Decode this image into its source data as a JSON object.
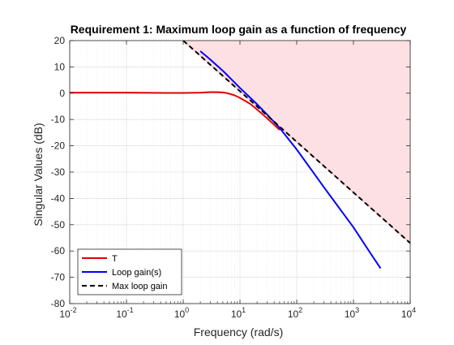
{
  "chart_data": {
    "type": "line",
    "title": "Requirement 1: Maximum loop gain as a function of frequency",
    "xlabel": "Frequency (rad/s)",
    "ylabel": "Singular Values (dB)",
    "xscale": "log",
    "xlim": [
      0.01,
      10000
    ],
    "ylim": [
      -80,
      20
    ],
    "grid": true,
    "legend_location": "bottom-left",
    "x_ticks": [
      {
        "value": 0.01,
        "base": "10",
        "exp": "-2"
      },
      {
        "value": 0.1,
        "base": "10",
        "exp": "-1"
      },
      {
        "value": 1,
        "base": "10",
        "exp": "0"
      },
      {
        "value": 10,
        "base": "10",
        "exp": "1"
      },
      {
        "value": 100,
        "base": "10",
        "exp": "2"
      },
      {
        "value": 1000,
        "base": "10",
        "exp": "3"
      },
      {
        "value": 10000,
        "base": "10",
        "exp": "4"
      }
    ],
    "y_ticks": [
      "20",
      "10",
      "0",
      "-10",
      "-20",
      "-30",
      "-40",
      "-50",
      "-60",
      "-70",
      "-80"
    ],
    "shaded_region": {
      "label": "Max loop gain",
      "fill_color": "#fde0e3",
      "edge_color": "#f4a9b1"
    },
    "series": [
      {
        "name": "T",
        "color": "#e00000",
        "style": "solid",
        "x": [
          0.01,
          0.1,
          0.5,
          1,
          2,
          3,
          4,
          5,
          6,
          8,
          10,
          15,
          20,
          30,
          40,
          50
        ],
        "y": [
          0.2,
          0.2,
          0.1,
          0.1,
          0.2,
          0.4,
          0.4,
          0.3,
          0.0,
          -0.8,
          -1.8,
          -4.0,
          -6.2,
          -9.5,
          -12.0,
          -14.0
        ]
      },
      {
        "name": "Loop gain(s)",
        "color": "#0000ff",
        "style": "solid",
        "x": [
          2,
          3,
          5,
          10,
          20,
          30,
          50,
          100,
          200,
          300,
          500,
          1000,
          2000,
          3000
        ],
        "y": [
          16.0,
          12.8,
          8.5,
          2.0,
          -4.2,
          -8.1,
          -13.2,
          -21.4,
          -30.4,
          -35.7,
          -42.2,
          -51.0,
          -60.9,
          -66.6
        ]
      },
      {
        "name": "Max loop gain",
        "color": "#000000",
        "style": "dashed",
        "x": [
          1,
          10000
        ],
        "y": [
          20,
          -57
        ]
      }
    ]
  }
}
